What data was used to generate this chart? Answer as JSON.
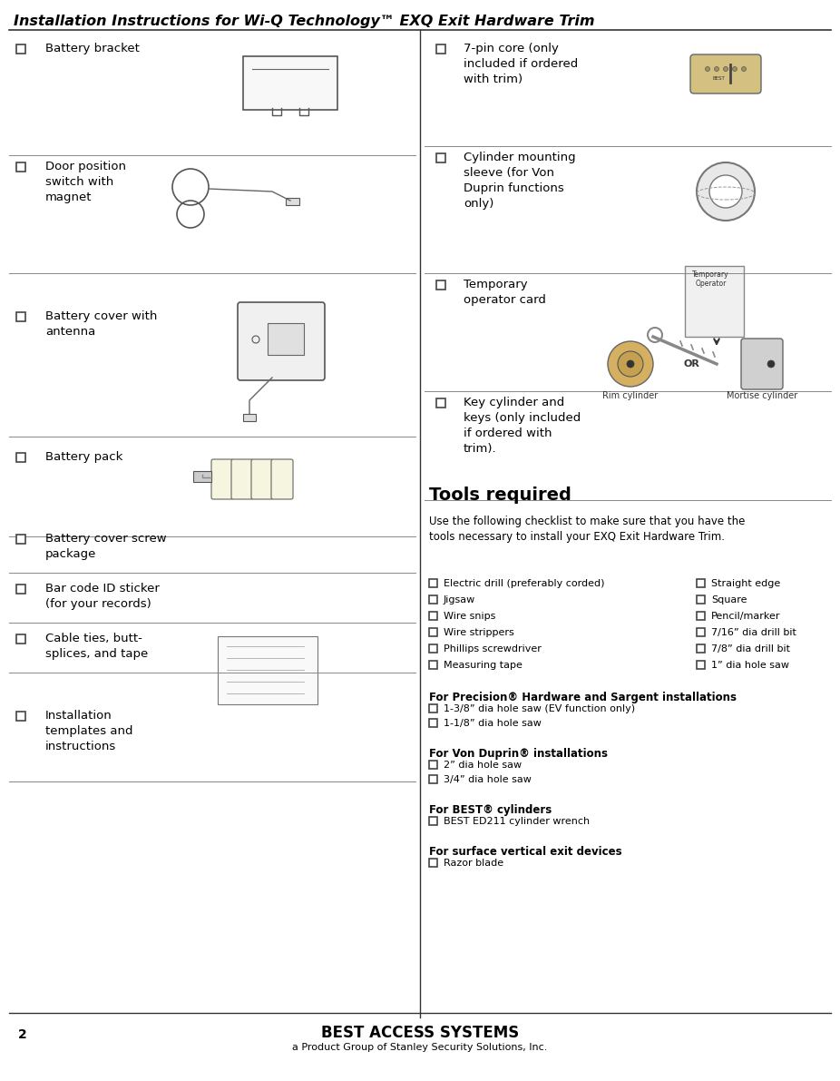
{
  "title": "Installation Instructions for Wi-Q Technology™ EXQ Exit Hardware Trim",
  "page_number": "2",
  "footer_main": "BEST ACCESS SYSTEMS",
  "footer_sub": "a Product Group of Stanley Security Solutions, Inc.",
  "bg_color": "#ffffff",
  "left_items": [
    "Battery bracket",
    "Door position\nswitch with\nmagnet",
    "Battery cover with\nantenna",
    "Battery pack",
    "Battery cover screw\npackage",
    "Bar code ID sticker\n(for your records)",
    "Cable ties, butt-\nsplices, and tape",
    "Installation\ntemplates and\ninstructions"
  ],
  "right_items_top": [
    "7-pin core (only\nincluded if ordered\nwith trim)",
    "Cylinder mounting\nsleeve (for Von\nDuprin functions\nonly)",
    "Temporary\noperator card",
    "Key cylinder and\nkeys (only included\nif ordered with\ntrim)."
  ],
  "tools_title": "Tools required",
  "tools_intro": "Use the following checklist to make sure that you have the\ntools necessary to install your EXQ Exit Hardware Trim.",
  "tools_left": [
    "Electric drill (preferably corded)",
    "Jigsaw",
    "Wire snips",
    "Wire strippers",
    "Phillips screwdriver",
    "Measuring tape"
  ],
  "tools_right": [
    "Straight edge",
    "Square",
    "Pencil/marker",
    "7/16” dia drill bit",
    "7/8” dia drill bit",
    "1” dia hole saw"
  ],
  "precision_title": "For Precision® Hardware and Sargent installations",
  "precision_items": [
    "1-3/8” dia hole saw (EV function only)",
    "1-1/8” dia hole saw"
  ],
  "vonduprin_title": "For Von Duprin® installations",
  "vonduprin_items": [
    "2” dia hole saw",
    "3/4” dia hole saw"
  ],
  "best_title": "For BEST® cylinders",
  "best_items": [
    "BEST ED211 cylinder wrench"
  ],
  "surface_title": "For surface vertical exit devices",
  "surface_items": [
    "Razor blade"
  ]
}
